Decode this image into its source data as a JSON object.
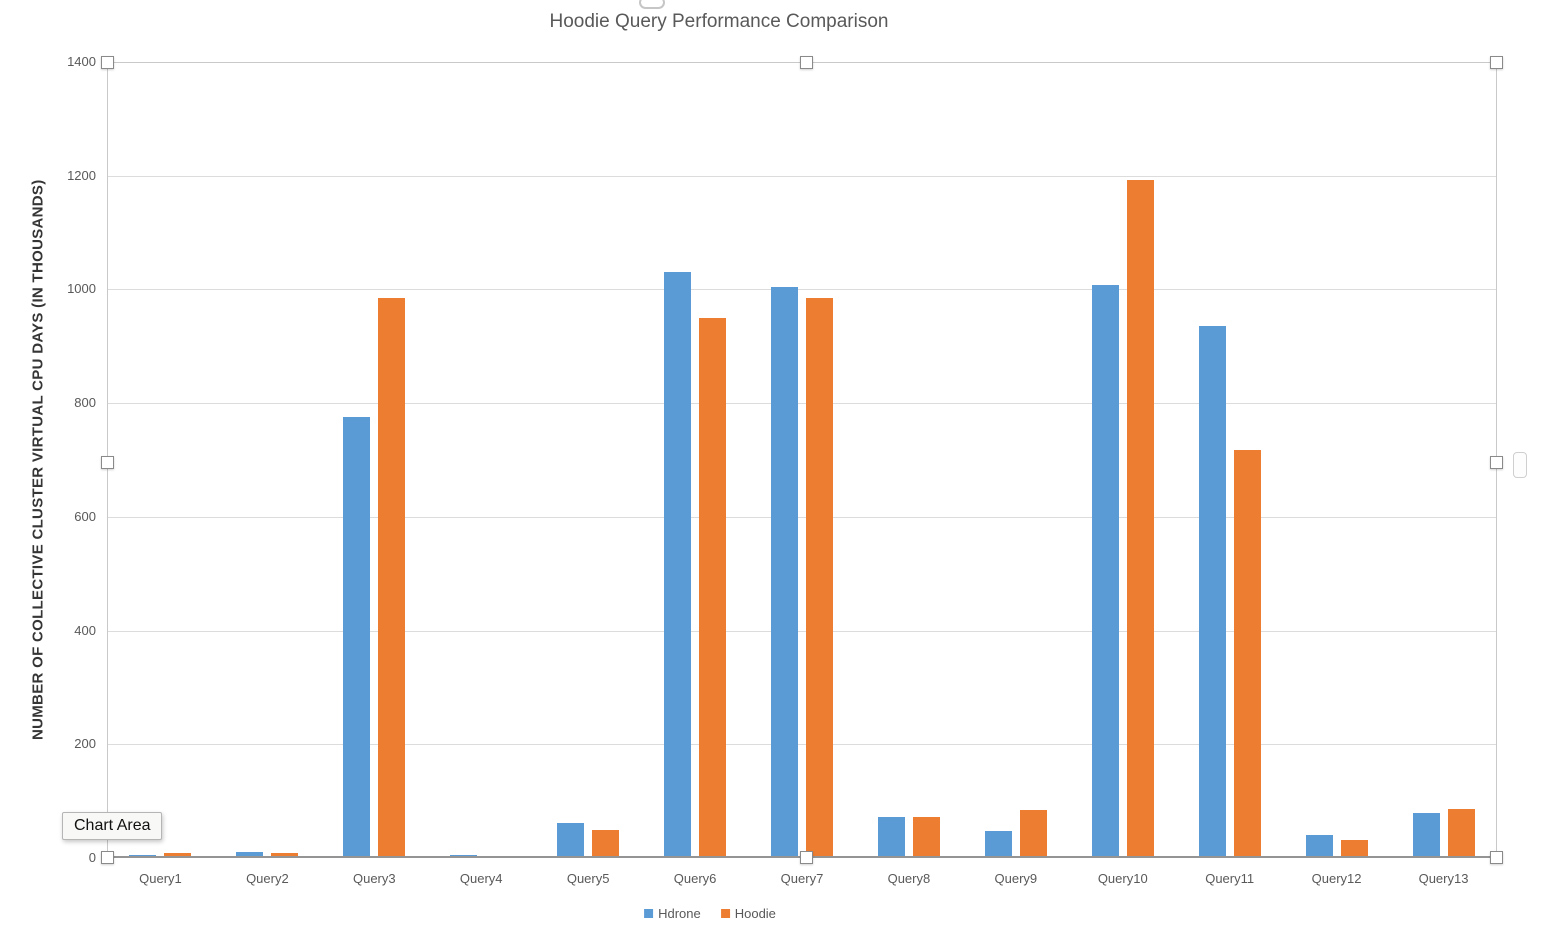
{
  "ui": {
    "tooltip": "Chart Area"
  },
  "chart_data": {
    "type": "bar",
    "title": "Hoodie Query Performance Comparison",
    "xlabel": "",
    "ylabel": "NUMBER OF COLLECTIVE CLUSTER VIRTUAL CPU DAYS (IN THOUSANDS)",
    "ylim": [
      0,
      1400
    ],
    "yticks": [
      0,
      200,
      400,
      600,
      800,
      1000,
      1200,
      1400
    ],
    "grid": "horizontal",
    "legend_position": "bottom-center",
    "categories": [
      "Query1",
      "Query2",
      "Query3",
      "Query4",
      "Query5",
      "Query6",
      "Query7",
      "Query8",
      "Query9",
      "Query10",
      "Query11",
      "Query12",
      "Query13"
    ],
    "series": [
      {
        "name": "Hdrone",
        "color": "#5B9BD5",
        "values": [
          5,
          10,
          775,
          5,
          62,
          1030,
          1005,
          72,
          47,
          1008,
          935,
          40,
          79
        ]
      },
      {
        "name": "Hoodie",
        "color": "#ED7D31",
        "values": [
          9,
          9,
          985,
          4,
          50,
          950,
          985,
          72,
          84,
          1192,
          718,
          32,
          86
        ]
      }
    ]
  },
  "colors": {
    "title_text": "#595959",
    "axis_text": "#595959",
    "gridline": "#dcdcdc",
    "axis_line": "#949494",
    "series_hdrone": "#5B9BD5",
    "series_hoodie": "#ED7D31"
  }
}
